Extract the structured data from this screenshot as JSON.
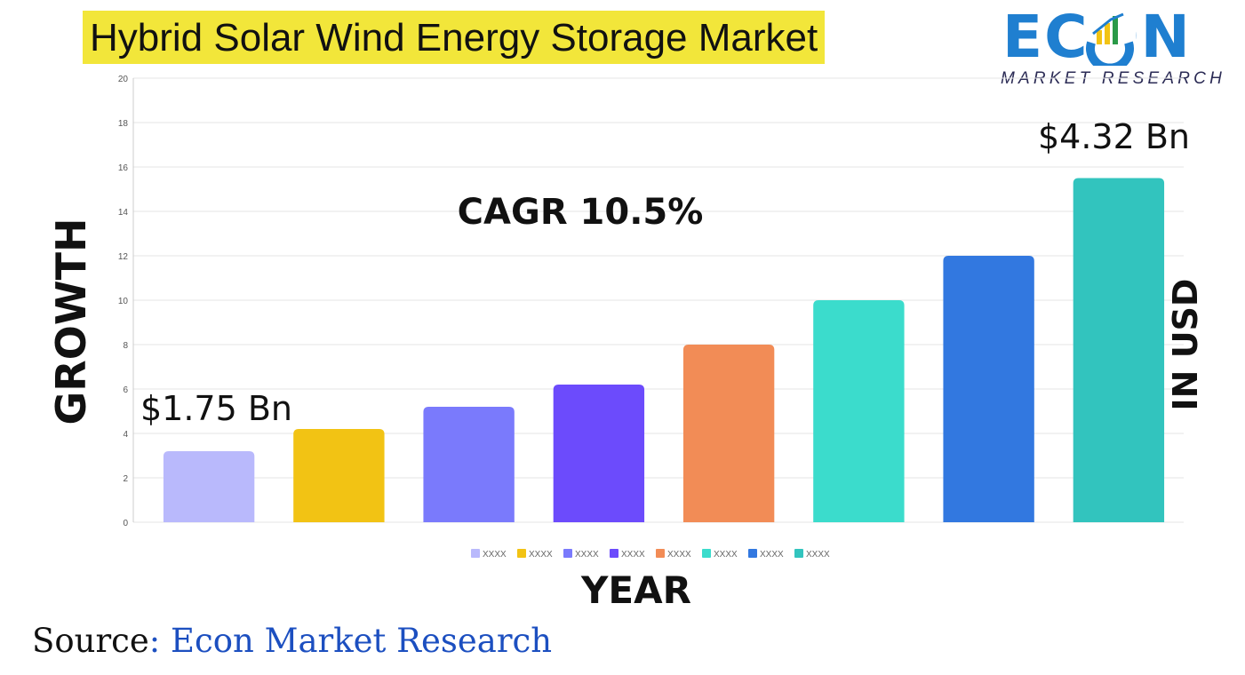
{
  "title": "Hybrid Solar Wind Energy Storage Market",
  "logo": {
    "text": "ECON",
    "subtitle": "MARKET RESEARCH"
  },
  "annotations": {
    "cagr": "CAGR  10.5%",
    "start_value": "$1.75 Bn",
    "end_value": "$4.32 Bn",
    "right_label": "IN USD"
  },
  "source": {
    "prefix": "Source",
    "colon": ":",
    "brand": " Econ Market Research"
  },
  "colors": {
    "title_highlight": "#f2e63a",
    "logo_blue": "#1f7fd0",
    "source_brand": "#1c4fc0",
    "grid": "#e6e6e6"
  },
  "chart_data": {
    "type": "bar",
    "xlabel": "YEAR",
    "ylabel": "GROWTH",
    "ylim": [
      0,
      20
    ],
    "yticks": [
      "0",
      "2",
      "4",
      "6",
      "8",
      "10",
      "12",
      "14",
      "16",
      "18",
      "20"
    ],
    "grid": true,
    "legend_position": "bottom",
    "categories": [
      "XXXX",
      "XXXX",
      "XXXX",
      "XXXX",
      "XXXX",
      "XXXX",
      "XXXX",
      "XXXX"
    ],
    "values": [
      3.2,
      4.2,
      5.2,
      6.2,
      8.0,
      10.0,
      12.0,
      15.5
    ],
    "colors": [
      "#b9b9fc",
      "#f2c314",
      "#7a7afc",
      "#6c4bfc",
      "#f28c56",
      "#3bdccc",
      "#3278e0",
      "#32c4be"
    ]
  }
}
